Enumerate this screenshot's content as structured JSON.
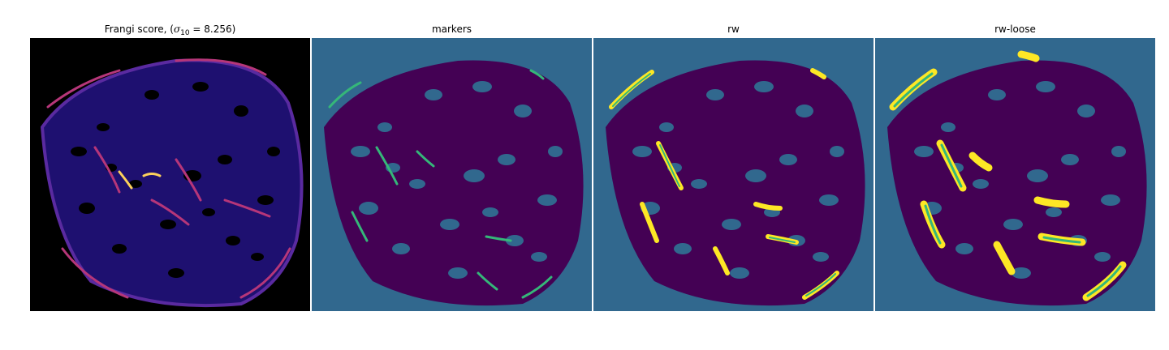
{
  "panels": [
    {
      "key": "frangi",
      "title_prefix": "Frangi score, (",
      "title_sigma": "σ",
      "title_sub": "10",
      "title_suffix": " = 8.256)",
      "colormap": "magma",
      "background": "#000000"
    },
    {
      "key": "markers",
      "title": "markers",
      "colormap": "viridis",
      "background": "#31688e"
    },
    {
      "key": "rw",
      "title": "rw",
      "colormap": "viridis",
      "background": "#31688e"
    },
    {
      "key": "rw-loose",
      "title": "rw-loose",
      "colormap": "viridis",
      "background": "#31688e"
    }
  ],
  "colors": {
    "viridis_background": "#31688e",
    "viridis_tissue": "#440154",
    "viridis_marker": "#35b779",
    "viridis_segment": "#fde725",
    "magma_background": "#000000",
    "magma_tissue": "#2a1c8c",
    "magma_ridge": "#b63679",
    "magma_peak": "#fcd15b"
  }
}
